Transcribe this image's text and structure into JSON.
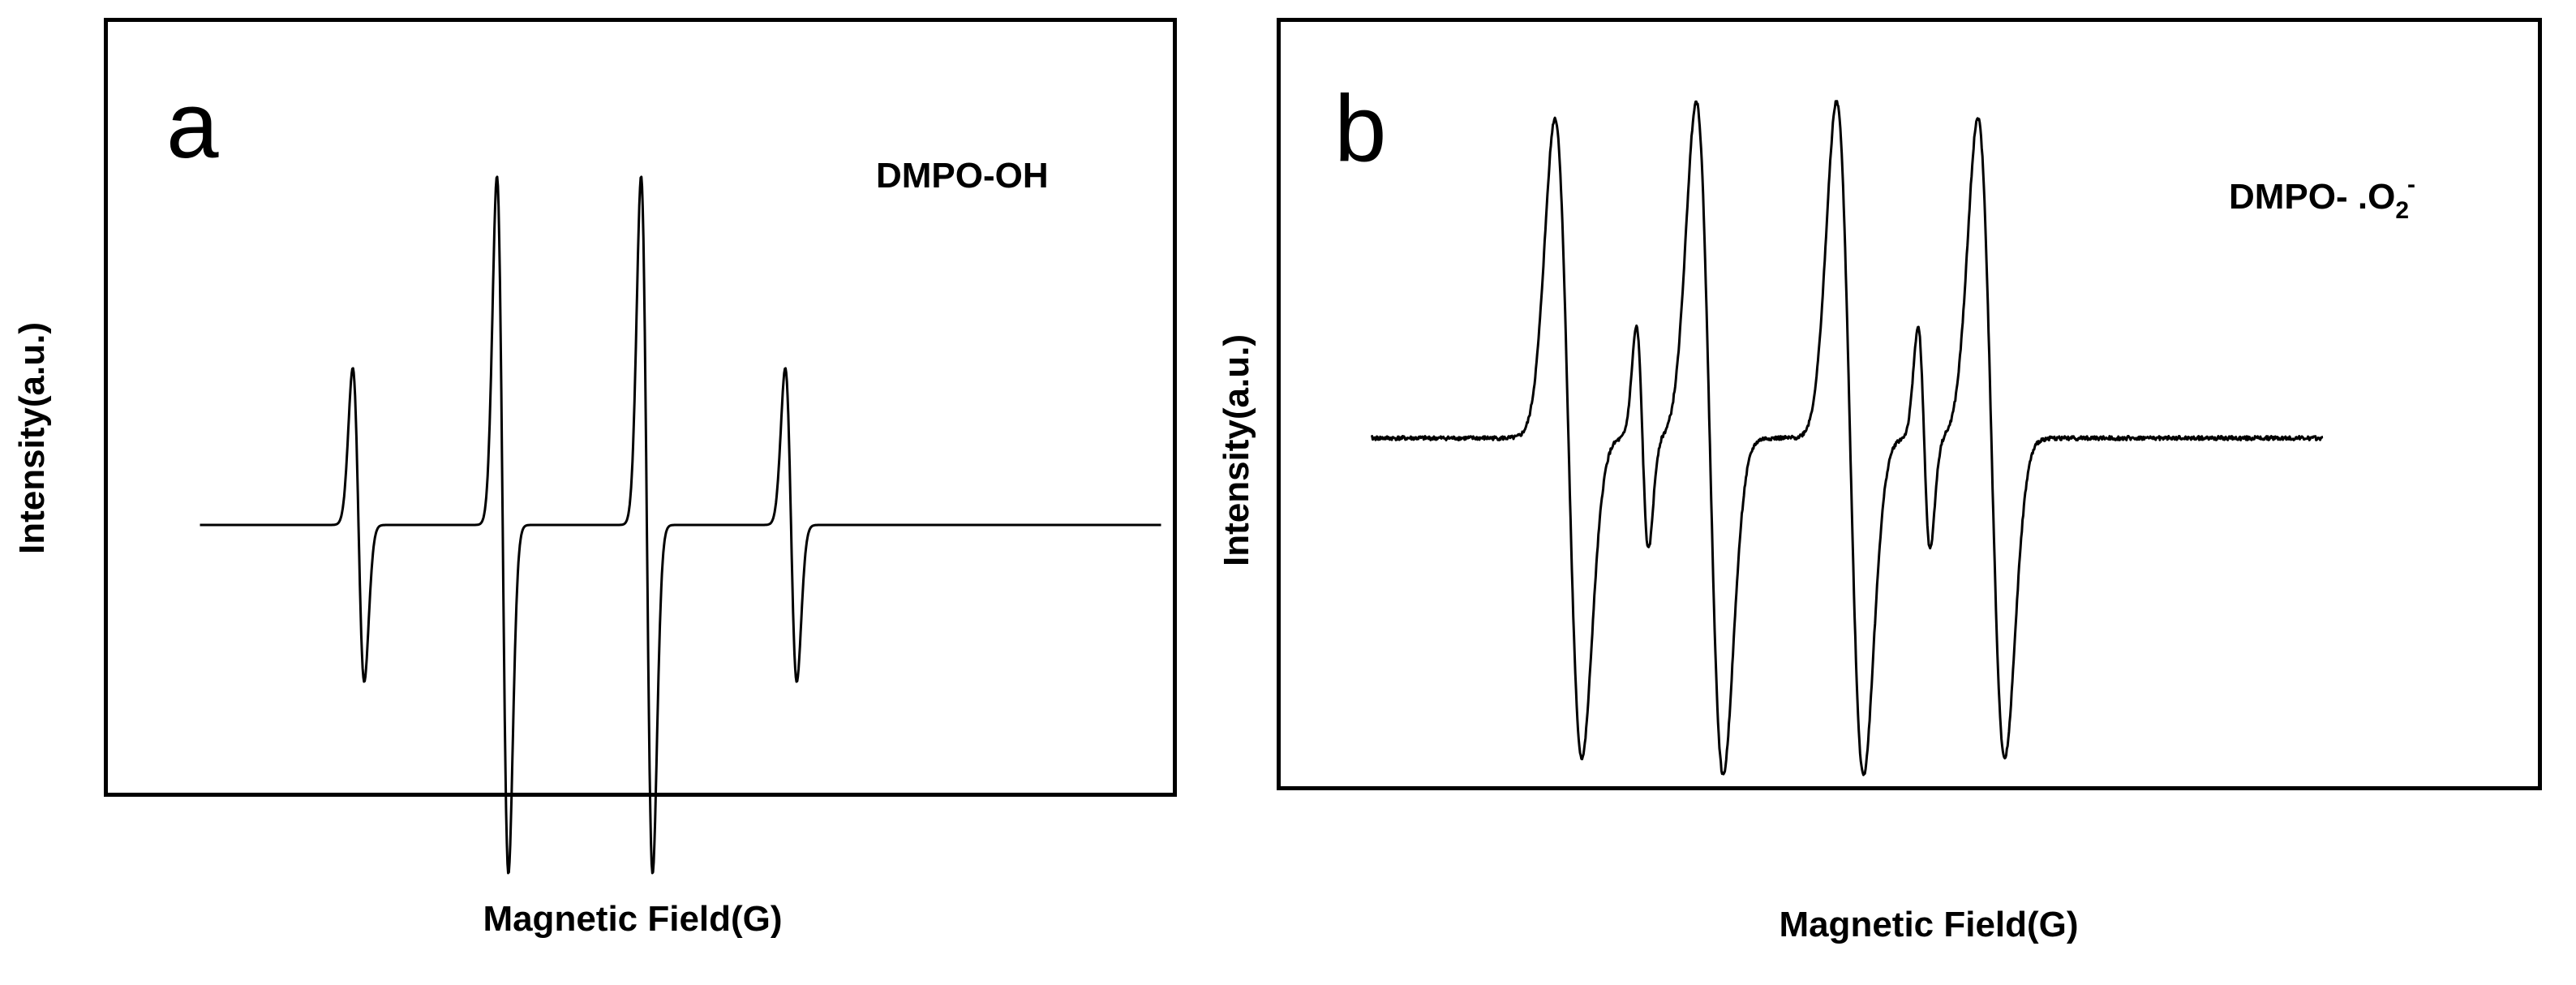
{
  "chart_data": [
    {
      "type": "line",
      "panel_label": "a",
      "annotation": "DMPO-OH",
      "xlabel": "Magnetic Field(G)",
      "ylabel": "Intensity(a.u.)",
      "grid": false,
      "axis_ticks": false,
      "color": "#000000",
      "series": [
        {
          "peaks": [
            {
              "center": 0.265,
              "amplitude": 0.45
            },
            {
              "center": 0.415,
              "amplitude": 1.0
            },
            {
              "center": 0.565,
              "amplitude": 1.0
            },
            {
              "center": 0.715,
              "amplitude": 0.45
            }
          ],
          "pattern": "1:2:2:1 quartet",
          "baseline_x_range": [
            0.1,
            1.1
          ],
          "linewidth": 0.006
        }
      ]
    },
    {
      "type": "line",
      "panel_label": "b",
      "annotation": {
        "prefix": "DMPO- .O",
        "subscript": "2",
        "superscript": "-"
      },
      "xlabel": "Magnetic Field(G)",
      "ylabel": "Intensity(a.u.)",
      "grid": false,
      "axis_ticks": false,
      "color": "#000000",
      "series": [
        {
          "main_peaks": [
            {
              "center": 0.215,
              "amplitude": 0.95
            },
            {
              "center": 0.362,
              "amplitude": 1.0
            },
            {
              "center": 0.508,
              "amplitude": 1.0
            },
            {
              "center": 0.655,
              "amplitude": 0.95
            }
          ],
          "minor_peaks": [
            {
              "center": 0.292,
              "amplitude": 0.33
            },
            {
              "center": 0.585,
              "amplitude": 0.33
            }
          ],
          "pattern": "quartet with superimposed minor lines",
          "baseline_x_range": [
            0.01,
            1.0
          ],
          "linewidth": 0.014,
          "noise": 0.012
        }
      ]
    }
  ]
}
